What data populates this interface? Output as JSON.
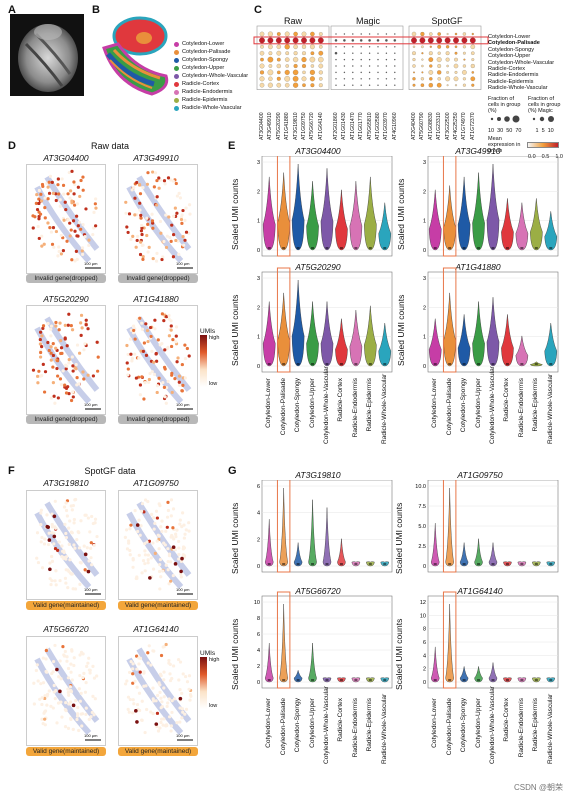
{
  "panel_labels": {
    "a": "A",
    "b": "B",
    "c": "C",
    "d": "D",
    "e": "E",
    "f": "F",
    "g": "G"
  },
  "clusters": [
    {
      "name": "Cotyledon-Lower",
      "color": "#c63da6"
    },
    {
      "name": "Cotyledon-Palisade",
      "color": "#e98f3b"
    },
    {
      "name": "Cotyledon-Spongy",
      "color": "#1f5aa6"
    },
    {
      "name": "Cotyledon-Upper",
      "color": "#3a9c46"
    },
    {
      "name": "Cotyledon-Whole-Vascular",
      "color": "#7d58a8"
    },
    {
      "name": "Radicle-Cortex",
      "color": "#e0383d"
    },
    {
      "name": "Radicle-Endodermis",
      "color": "#d773b5"
    },
    {
      "name": "Radicle-Epidermis",
      "color": "#9bae45"
    },
    {
      "name": "Radicle-Whole-Vascular",
      "color": "#2aa5bd"
    }
  ],
  "dotplot": {
    "groups": [
      "Raw",
      "Magic",
      "SpotGF"
    ],
    "raw_genes": [
      "AT3G04400",
      "AT3G49910",
      "AT5G20290",
      "AT1G41880",
      "AT3G19810",
      "AT1G09750",
      "AT5G66720",
      "AT1G64140"
    ],
    "magic_genes": [
      "AT2G01860",
      "AT1G01430",
      "AT1G01470",
      "AT1G01770",
      "AT5G65810",
      "AT1G02580",
      "AT1G03970",
      "AT4G10960"
    ],
    "spotgf_genes": [
      "AT2G40400",
      "AT5G60790",
      "AT1G08830",
      "AT1G23310",
      "AT3G22500",
      "AT4G25250",
      "AT1G74970",
      "AT1G72370"
    ],
    "legend": {
      "fraction_label": "Fraction of cells in group (%)",
      "fraction_label2": "Fraction of cells in group (%) Magic",
      "mean_label": "Mean expression in group",
      "size_ticks": [
        "10",
        "30",
        "50",
        "70"
      ],
      "size_ticks2": [
        "1",
        "5",
        "10"
      ],
      "color_ticks": [
        "0.0",
        "0.5",
        "1.0"
      ]
    }
  },
  "raw_section": {
    "title": "Raw data",
    "genes": [
      "AT3G04400",
      "AT3G49910",
      "AT5G20290",
      "AT1G41880"
    ],
    "badge": "Invalid gene(dropped)",
    "scalebar": "100 μm",
    "colorbar": {
      "title": "UMIs",
      "high": "high",
      "low": "low"
    }
  },
  "spotgf_section": {
    "title": "SpotGF data",
    "genes": [
      "AT3G19810",
      "AT1G09750",
      "AT5G66720",
      "AT1G64140"
    ],
    "badge": "Valid gene(maintained)",
    "scalebar": "100 μm",
    "colorbar": {
      "title": "UMIs",
      "high": "high",
      "low": "low"
    }
  },
  "violin_e": {
    "ylabel": "Scaled UMI counts",
    "genes": [
      "AT3G04400",
      "AT3G49910",
      "AT5G20290",
      "AT1G41880"
    ],
    "yticks": [
      "0",
      "1",
      "2",
      "3"
    ]
  },
  "violin_g": {
    "ylabel": "Scaled UMI counts",
    "genes": [
      "AT3G19810",
      "AT1G09750",
      "AT5G66720",
      "AT1G64140"
    ],
    "yticks_a": [
      "0",
      "2",
      "4",
      "6"
    ],
    "yticks_b": [
      "0",
      "2.5",
      "5.0",
      "7.5",
      "10.0"
    ],
    "yticks_c": [
      "0",
      "2",
      "4",
      "6",
      "8",
      "10"
    ],
    "yticks_d": [
      "0",
      "2",
      "4",
      "6",
      "8",
      "10",
      "12"
    ]
  },
  "watermark": "CSDN @朝荣"
}
